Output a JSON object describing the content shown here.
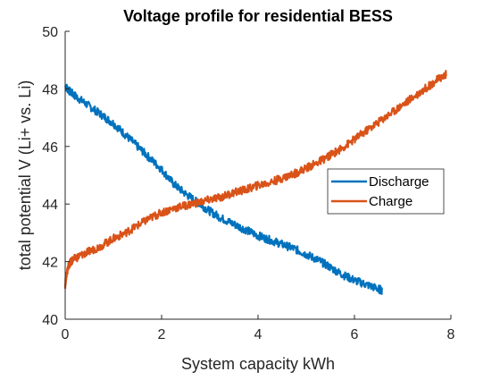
{
  "chart_data": {
    "type": "line",
    "title": "Voltage profile for residential BESS",
    "xlabel": "System capacity kWh",
    "ylabel": "total potential V (Li+ vs. Li)",
    "xlim": [
      0,
      8
    ],
    "ylim": [
      40,
      50
    ],
    "xticks": [
      0,
      2,
      4,
      6,
      8
    ],
    "yticks": [
      40,
      42,
      44,
      46,
      48,
      50
    ],
    "grid": false,
    "legend_position": "right",
    "series": [
      {
        "name": "Discharge",
        "color": "#0072BD",
        "x": [
          0,
          0.1,
          0.25,
          0.5,
          0.75,
          1.0,
          1.25,
          1.5,
          1.75,
          2.0,
          2.25,
          2.5,
          2.75,
          3.0,
          3.25,
          3.5,
          3.75,
          4.0,
          4.25,
          4.5,
          4.75,
          5.0,
          5.25,
          5.5,
          5.75,
          6.0,
          6.25,
          6.5,
          6.57
        ],
        "y": [
          48.1,
          47.9,
          47.7,
          47.4,
          47.1,
          46.8,
          46.4,
          46.0,
          45.6,
          45.2,
          44.7,
          44.35,
          44.05,
          43.75,
          43.5,
          43.3,
          43.1,
          42.9,
          42.75,
          42.6,
          42.45,
          42.25,
          42.05,
          41.8,
          41.55,
          41.35,
          41.2,
          41.05,
          41.0
        ]
      },
      {
        "name": "Charge",
        "color": "#D95319",
        "x": [
          0,
          0.03,
          0.08,
          0.15,
          0.3,
          0.5,
          0.75,
          1.0,
          1.25,
          1.5,
          1.75,
          2.0,
          2.25,
          2.5,
          2.75,
          3.0,
          3.25,
          3.5,
          3.75,
          4.0,
          4.25,
          4.5,
          4.75,
          5.0,
          5.25,
          5.5,
          5.75,
          6.0,
          6.25,
          6.5,
          6.75,
          7.0,
          7.25,
          7.5,
          7.75,
          7.9
        ],
        "y": [
          41.2,
          41.6,
          41.9,
          42.05,
          42.2,
          42.35,
          42.55,
          42.8,
          43.0,
          43.25,
          43.5,
          43.7,
          43.85,
          43.95,
          44.05,
          44.15,
          44.25,
          44.4,
          44.5,
          44.65,
          44.75,
          44.9,
          45.05,
          45.25,
          45.45,
          45.7,
          45.95,
          46.25,
          46.55,
          46.85,
          47.15,
          47.45,
          47.75,
          48.05,
          48.35,
          48.5
        ]
      }
    ]
  }
}
